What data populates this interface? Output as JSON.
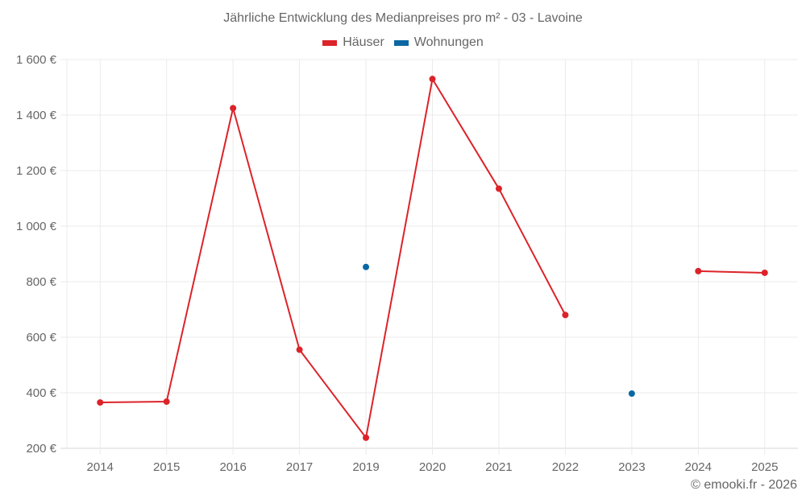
{
  "title": "Jährliche Entwicklung des Medianpreises pro m² - 03 - Lavoine",
  "legend": [
    {
      "label": "Häuser",
      "color": "#dc2329"
    },
    {
      "label": "Wohnungen",
      "color": "#0b67a3"
    }
  ],
  "credit": "© emooki.fr - 2026",
  "y_ticks": [
    {
      "value": 200,
      "label": "200 €"
    },
    {
      "value": 400,
      "label": "400 €"
    },
    {
      "value": 600,
      "label": "600 €"
    },
    {
      "value": 800,
      "label": "800 €"
    },
    {
      "value": 1000,
      "label": "1 000 €"
    },
    {
      "value": 1200,
      "label": "1 200 €"
    },
    {
      "value": 1400,
      "label": "1 400 €"
    },
    {
      "value": 1600,
      "label": "1 600 €"
    }
  ],
  "chart_data": {
    "type": "line",
    "title": "Jährliche Entwicklung des Medianpreises pro m² - 03 - Lavoine",
    "xlabel": "",
    "ylabel": "",
    "ylim": [
      200,
      1600
    ],
    "grid": true,
    "legend_position": "top",
    "categories": [
      "2014",
      "2015",
      "2016",
      "2017",
      "2019",
      "2020",
      "2021",
      "2022",
      "2023",
      "2024",
      "2025"
    ],
    "series": [
      {
        "name": "Häuser",
        "color": "#dc2329",
        "values": [
          365,
          368,
          1425,
          555,
          238,
          1530,
          1135,
          680,
          null,
          838,
          832
        ]
      },
      {
        "name": "Wohnungen",
        "color": "#0b67a3",
        "values": [
          null,
          null,
          null,
          null,
          853,
          null,
          null,
          null,
          397,
          null,
          null
        ]
      }
    ]
  }
}
